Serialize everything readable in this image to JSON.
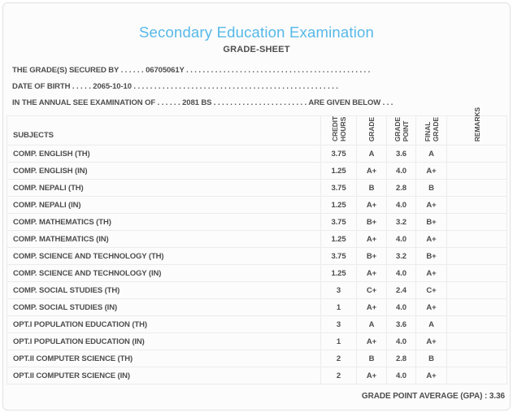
{
  "header": {
    "title": "Secondary Education Examination",
    "subtitle": "GRADE-SHEET"
  },
  "info": {
    "line1": "THE GRADE(S) SECURED BY . . . . . . 06705061Y . . . . . . . . . . . . . . . . . . . . . . . . . . . . . . . . . . . . . . . . . . . . .",
    "line2": "DATE OF BIRTH . . . . . 2065-10-10 . . . . . . . . . . . . . . . . . . . . . . . . . . . . . . . . . . . . . . . . . . . . . . . . . .",
    "line3": "IN THE ANNUAL SEE EXAMINATION OF . . . . . . 2081 BS . . . . . . . . . . . . . . . . . . . . . . . ARE GIVEN BELOW . . ."
  },
  "table": {
    "headers": {
      "subjects": "SUBJECTS",
      "credit_hours": "CREDIT\nHOURS",
      "grade": "GRADE",
      "grade_point": "GRADE\nPOINT",
      "final_grade": "FINAL\nGRADE",
      "remarks": "REMARKS"
    },
    "rows": [
      {
        "subject": "COMP. ENGLISH (TH)",
        "credit_hours": "3.75",
        "grade": "A",
        "grade_point": "3.6",
        "final_grade": "A",
        "remarks": ""
      },
      {
        "subject": "COMP. ENGLISH (IN)",
        "credit_hours": "1.25",
        "grade": "A+",
        "grade_point": "4.0",
        "final_grade": "A+",
        "remarks": ""
      },
      {
        "subject": "COMP. NEPALI (TH)",
        "credit_hours": "3.75",
        "grade": "B",
        "grade_point": "2.8",
        "final_grade": "B",
        "remarks": ""
      },
      {
        "subject": "COMP. NEPALI (IN)",
        "credit_hours": "1.25",
        "grade": "A+",
        "grade_point": "4.0",
        "final_grade": "A+",
        "remarks": ""
      },
      {
        "subject": "COMP. MATHEMATICS (TH)",
        "credit_hours": "3.75",
        "grade": "B+",
        "grade_point": "3.2",
        "final_grade": "B+",
        "remarks": ""
      },
      {
        "subject": "COMP. MATHEMATICS (IN)",
        "credit_hours": "1.25",
        "grade": "A+",
        "grade_point": "4.0",
        "final_grade": "A+",
        "remarks": ""
      },
      {
        "subject": "COMP. SCIENCE AND TECHNOLOGY (TH)",
        "credit_hours": "3.75",
        "grade": "B+",
        "grade_point": "3.2",
        "final_grade": "B+",
        "remarks": ""
      },
      {
        "subject": "COMP. SCIENCE AND TECHNOLOGY (IN)",
        "credit_hours": "1.25",
        "grade": "A+",
        "grade_point": "4.0",
        "final_grade": "A+",
        "remarks": ""
      },
      {
        "subject": "COMP. SOCIAL STUDIES (TH)",
        "credit_hours": "3",
        "grade": "C+",
        "grade_point": "2.4",
        "final_grade": "C+",
        "remarks": ""
      },
      {
        "subject": "COMP. SOCIAL STUDIES (IN)",
        "credit_hours": "1",
        "grade": "A+",
        "grade_point": "4.0",
        "final_grade": "A+",
        "remarks": ""
      },
      {
        "subject": "OPT.I POPULATION EDUCATION (TH)",
        "credit_hours": "3",
        "grade": "A",
        "grade_point": "3.6",
        "final_grade": "A",
        "remarks": ""
      },
      {
        "subject": "OPT.I POPULATION EDUCATION (IN)",
        "credit_hours": "1",
        "grade": "A+",
        "grade_point": "4.0",
        "final_grade": "A+",
        "remarks": ""
      },
      {
        "subject": "OPT.II COMPUTER SCIENCE (TH)",
        "credit_hours": "2",
        "grade": "B",
        "grade_point": "2.8",
        "final_grade": "B",
        "remarks": ""
      },
      {
        "subject": "OPT.II COMPUTER SCIENCE (IN)",
        "credit_hours": "2",
        "grade": "A+",
        "grade_point": "4.0",
        "final_grade": "A+",
        "remarks": ""
      }
    ]
  },
  "footer": {
    "gpa_text": "GRADE POINT AVERAGE (GPA) : 3.36"
  },
  "colors": {
    "title_blue": "#56b8e8",
    "text_gray": "#4d4d4d",
    "table_border": "#ececec",
    "page_border": "#e2e2e2",
    "page_background": "#fcfcfc"
  }
}
